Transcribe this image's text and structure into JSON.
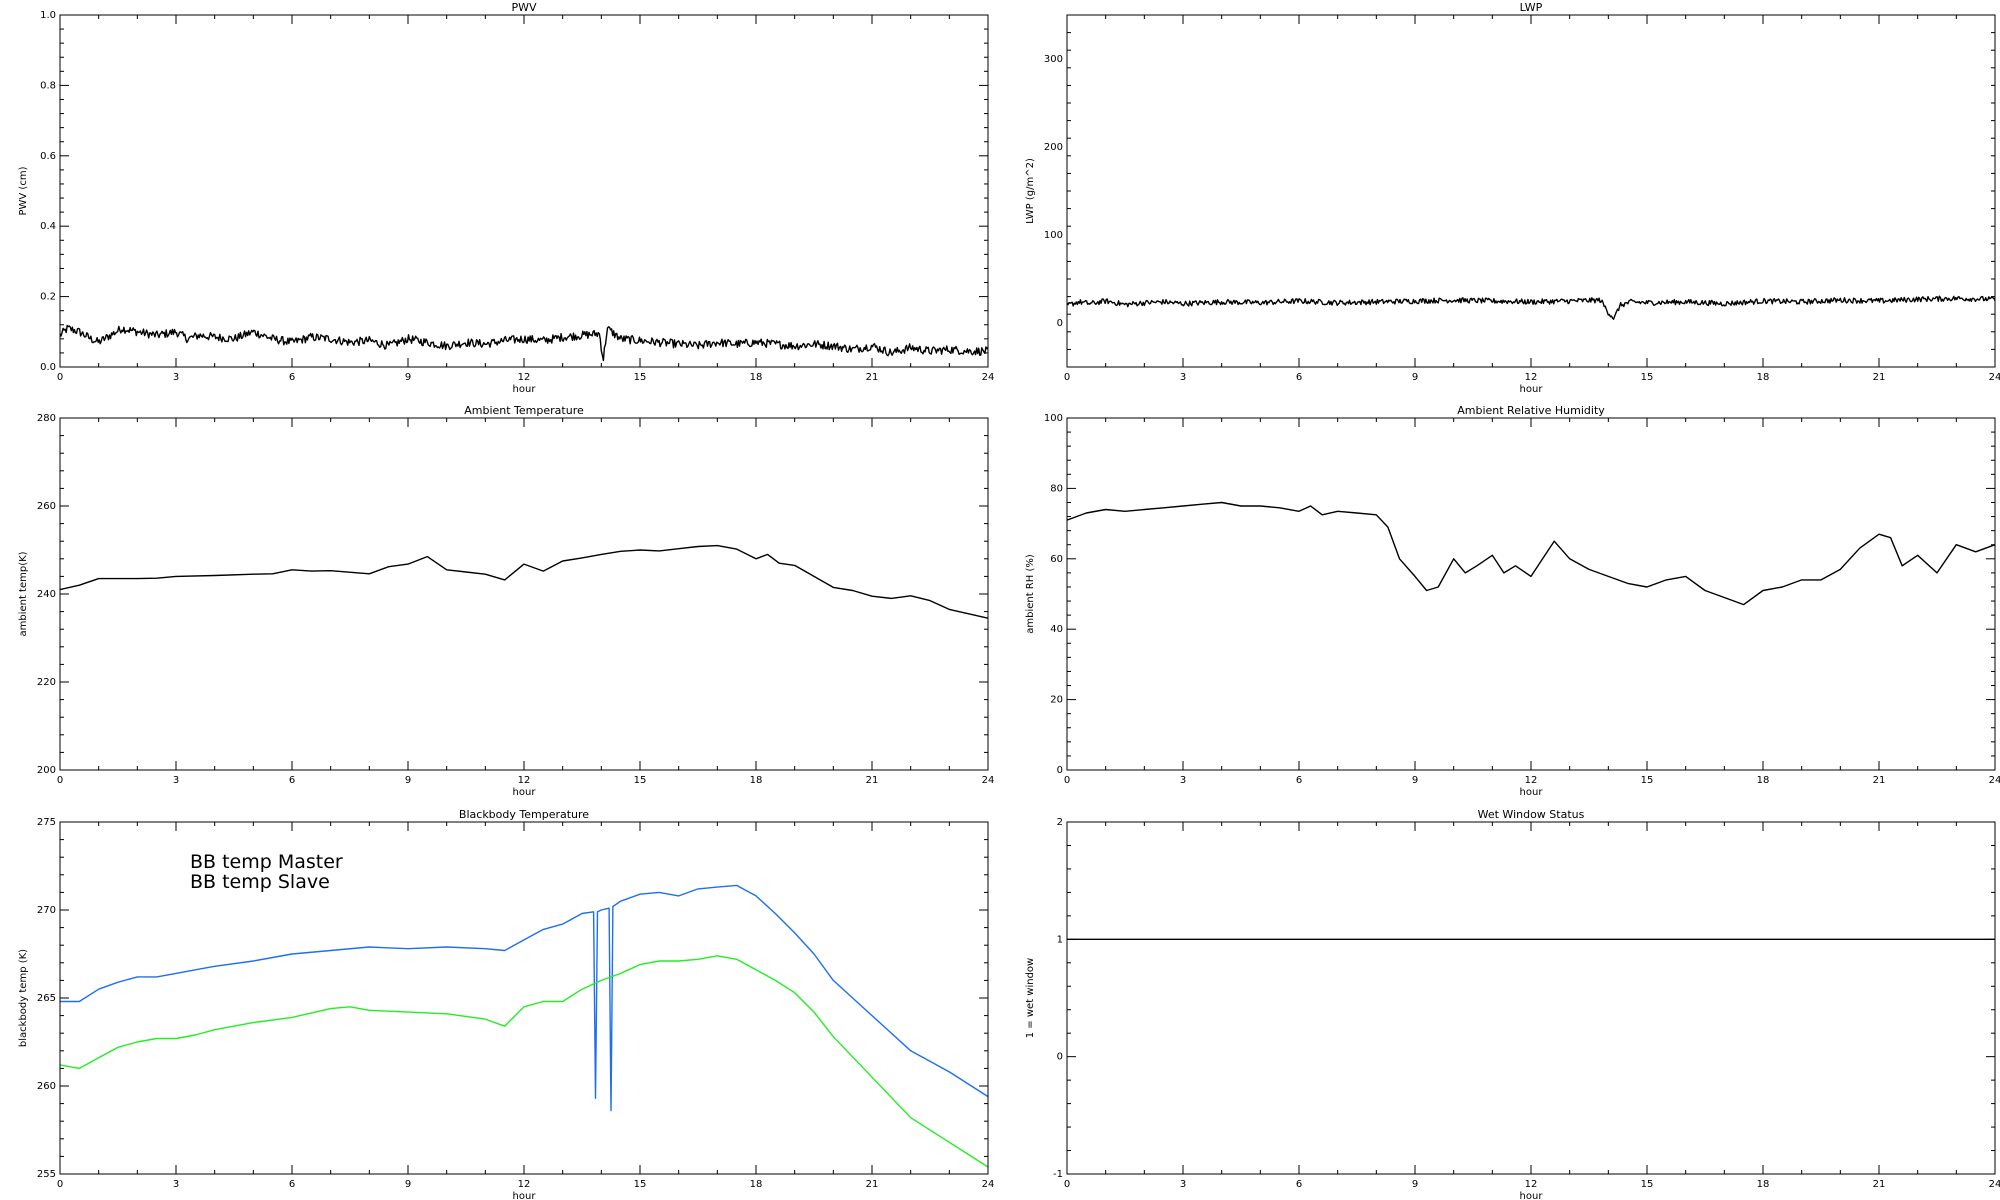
{
  "colors": {
    "axis": "#000000",
    "line_black": "#000000",
    "master": "#1e6ff0",
    "slave": "#22ee22"
  },
  "chart_data": [
    {
      "type": "line",
      "title": "PWV",
      "xlabel": "hour",
      "ylabel": "PWV (cm)",
      "xlim": [
        0,
        24
      ],
      "ylim": [
        0,
        1.0
      ],
      "xticks": [
        0,
        3,
        6,
        9,
        12,
        15,
        18,
        21,
        24
      ],
      "yticks": [
        0.0,
        0.2,
        0.4,
        0.6,
        0.8,
        1.0
      ],
      "ytick_labels": [
        "0.0",
        "0.2",
        "0.4",
        "0.6",
        "0.8",
        "1.0"
      ],
      "grid": false,
      "noisy": true,
      "noise_amplitude": 0.012,
      "series": [
        {
          "color": "#000000",
          "x": [
            0,
            0.2,
            0.5,
            0.8,
            1.0,
            1.3,
            1.6,
            2.0,
            2.5,
            3.0,
            3.3,
            3.6,
            4.0,
            4.5,
            5.0,
            5.5,
            6.0,
            6.5,
            7.0,
            7.5,
            8.0,
            8.5,
            9.0,
            9.5,
            10.0,
            10.5,
            11.0,
            11.5,
            12.0,
            12.5,
            13.0,
            13.5,
            13.95,
            14.05,
            14.15,
            14.5,
            15.0,
            15.5,
            16.0,
            16.5,
            17.0,
            17.5,
            18.0,
            18.5,
            19.0,
            19.5,
            20.0,
            20.5,
            21.0,
            21.5,
            22.0,
            22.5,
            23.0,
            23.5,
            24.0
          ],
          "y": [
            0.09,
            0.11,
            0.1,
            0.08,
            0.07,
            0.09,
            0.11,
            0.1,
            0.09,
            0.1,
            0.08,
            0.09,
            0.085,
            0.08,
            0.1,
            0.08,
            0.07,
            0.085,
            0.08,
            0.07,
            0.075,
            0.06,
            0.08,
            0.07,
            0.06,
            0.07,
            0.065,
            0.075,
            0.08,
            0.075,
            0.085,
            0.09,
            0.095,
            0.02,
            0.11,
            0.08,
            0.075,
            0.07,
            0.065,
            0.06,
            0.07,
            0.065,
            0.07,
            0.065,
            0.06,
            0.065,
            0.06,
            0.05,
            0.06,
            0.04,
            0.055,
            0.045,
            0.05,
            0.045,
            0.045
          ]
        }
      ]
    },
    {
      "type": "line",
      "title": "LWP",
      "xlabel": "hour",
      "ylabel": "LWP (g/m^2)",
      "xlim": [
        0,
        24
      ],
      "ylim": [
        -50,
        350
      ],
      "xticks": [
        0,
        3,
        6,
        9,
        12,
        15,
        18,
        21,
        24
      ],
      "yticks": [
        0,
        100,
        200,
        300
      ],
      "ytick_labels": [
        "0",
        "100",
        "200",
        "300"
      ],
      "grid": false,
      "noisy": true,
      "noise_amplitude": 3,
      "series": [
        {
          "color": "#000000",
          "x": [
            0,
            0.3,
            0.6,
            1.0,
            1.5,
            2.0,
            2.5,
            3.0,
            4.0,
            5.0,
            6.0,
            7.0,
            8.0,
            9.0,
            10.0,
            11.0,
            12.0,
            13.0,
            13.8,
            14.0,
            14.15,
            14.3,
            14.6,
            15.0,
            16.0,
            17.0,
            18.0,
            19.0,
            20.0,
            21.0,
            22.0,
            23.0,
            24.0
          ],
          "y": [
            20,
            24,
            22,
            25,
            21,
            23,
            24,
            22,
            24,
            23,
            25,
            23,
            24,
            25,
            26,
            25,
            24,
            25,
            26,
            12,
            5,
            20,
            24,
            23,
            24,
            22,
            25,
            24,
            26,
            25,
            27,
            28,
            27
          ]
        }
      ]
    },
    {
      "type": "line",
      "title": "Ambient Temperature",
      "xlabel": "hour",
      "ylabel": "ambient temp(K)",
      "xlim": [
        0,
        24
      ],
      "ylim": [
        200,
        280
      ],
      "xticks": [
        0,
        3,
        6,
        9,
        12,
        15,
        18,
        21,
        24
      ],
      "yticks": [
        200,
        220,
        240,
        260,
        280
      ],
      "ytick_labels": [
        "200",
        "220",
        "240",
        "260",
        "280"
      ],
      "grid": false,
      "noisy": false,
      "series": [
        {
          "color": "#000000",
          "x": [
            0,
            0.5,
            1.0,
            1.5,
            2.0,
            2.5,
            3.0,
            4.0,
            5.0,
            5.5,
            6.0,
            6.5,
            7.0,
            8.0,
            8.5,
            9.0,
            9.5,
            10.0,
            10.5,
            11.0,
            11.5,
            12.0,
            12.5,
            13.0,
            13.5,
            14.0,
            14.5,
            15.0,
            15.5,
            16.0,
            16.5,
            17.0,
            17.5,
            18.0,
            18.3,
            18.6,
            19.0,
            19.5,
            20.0,
            20.5,
            21.0,
            21.5,
            22.0,
            22.5,
            23.0,
            23.5,
            24.0
          ],
          "y": [
            241,
            242,
            243.5,
            243.5,
            243.5,
            243.6,
            244,
            244.2,
            244.5,
            244.6,
            245.5,
            245.2,
            245.3,
            244.6,
            246.2,
            246.8,
            248.5,
            245.5,
            245,
            244.5,
            243.2,
            246.8,
            245.2,
            247.5,
            248.2,
            249,
            249.7,
            250,
            249.8,
            250.3,
            250.8,
            251,
            250.2,
            248,
            249,
            247,
            246.5,
            244,
            241.5,
            240.8,
            239.5,
            239,
            239.6,
            238.5,
            236.5,
            235.5,
            234.5
          ]
        }
      ]
    },
    {
      "type": "line",
      "title": "Ambient Relative Humidity",
      "xlabel": "hour",
      "ylabel": "ambient RH (%)",
      "xlim": [
        0,
        24
      ],
      "ylim": [
        0,
        100
      ],
      "xticks": [
        0,
        3,
        6,
        9,
        12,
        15,
        18,
        21,
        24
      ],
      "yticks": [
        0,
        20,
        40,
        60,
        80,
        100
      ],
      "ytick_labels": [
        "0",
        "20",
        "40",
        "60",
        "80",
        "100"
      ],
      "grid": false,
      "noisy": false,
      "series": [
        {
          "color": "#000000",
          "x": [
            0,
            0.5,
            1.0,
            1.5,
            2.0,
            2.5,
            3.0,
            3.5,
            4.0,
            4.5,
            5.0,
            5.5,
            6.0,
            6.3,
            6.6,
            7.0,
            7.5,
            8.0,
            8.3,
            8.6,
            9.0,
            9.3,
            9.6,
            10.0,
            10.3,
            10.6,
            11.0,
            11.3,
            11.6,
            12.0,
            12.3,
            12.6,
            13.0,
            13.5,
            14.0,
            14.5,
            15.0,
            15.5,
            16.0,
            16.5,
            17.0,
            17.5,
            18.0,
            18.5,
            19.0,
            19.5,
            20.0,
            20.5,
            21.0,
            21.3,
            21.6,
            22.0,
            22.5,
            23.0,
            23.5,
            24.0
          ],
          "y": [
            71,
            73,
            74,
            73.5,
            74,
            74.5,
            75,
            75.5,
            76,
            75,
            75,
            74.5,
            73.5,
            75,
            72.5,
            73.5,
            73,
            72.5,
            69,
            60,
            55,
            51,
            52,
            60,
            56,
            58,
            61,
            56,
            58,
            55,
            60,
            65,
            60,
            57,
            55,
            53,
            52,
            54,
            55,
            51,
            49,
            47,
            51,
            52,
            54,
            54,
            57,
            63,
            67,
            66,
            58,
            61,
            56,
            64,
            62,
            64
          ]
        }
      ]
    },
    {
      "type": "line",
      "title": "Blackbody Temperature",
      "xlabel": "hour",
      "ylabel": "blackbody temp (K)",
      "xlim": [
        0,
        24
      ],
      "ylim": [
        255,
        275
      ],
      "xticks": [
        0,
        3,
        6,
        9,
        12,
        15,
        18,
        21,
        24
      ],
      "yticks": [
        255,
        260,
        265,
        270,
        275
      ],
      "ytick_labels": [
        "255",
        "260",
        "265",
        "270",
        "275"
      ],
      "grid": false,
      "noisy": false,
      "legend_placement": "top-left",
      "legend": [
        "BB temp Master",
        "BB temp Slave"
      ],
      "series": [
        {
          "name": "BB temp Master",
          "color": "#1e6ff0",
          "x": [
            0,
            0.5,
            1.0,
            1.5,
            2.0,
            2.5,
            3.0,
            3.5,
            4.0,
            5.0,
            6.0,
            7.0,
            8.0,
            9.0,
            10.0,
            11.0,
            11.5,
            12.0,
            12.5,
            13.0,
            13.5,
            13.8,
            13.85,
            13.9,
            14.0,
            14.2,
            14.25,
            14.3,
            14.5,
            15.0,
            15.5,
            16.0,
            16.5,
            17.0,
            17.5,
            18.0,
            18.5,
            19.0,
            19.5,
            20.0,
            21.0,
            22.0,
            23.0,
            24.0
          ],
          "y": [
            264.8,
            264.8,
            265.5,
            265.9,
            266.2,
            266.2,
            266.4,
            266.6,
            266.8,
            267.1,
            267.5,
            267.7,
            267.9,
            267.8,
            267.9,
            267.8,
            267.7,
            268.3,
            268.9,
            269.2,
            269.8,
            269.9,
            259.3,
            269.9,
            270.0,
            270.1,
            258.6,
            270.2,
            270.5,
            270.9,
            271.0,
            270.8,
            271.2,
            271.3,
            271.4,
            270.8,
            269.8,
            268.7,
            267.5,
            266.0,
            264.0,
            262.0,
            260.8,
            259.4
          ]
        },
        {
          "name": "BB temp Slave",
          "color": "#22ee22",
          "x": [
            0,
            0.5,
            1.0,
            1.5,
            2.0,
            2.5,
            3.0,
            3.5,
            4.0,
            5.0,
            6.0,
            7.0,
            7.5,
            8.0,
            9.0,
            10.0,
            11.0,
            11.5,
            12.0,
            12.5,
            13.0,
            13.5,
            14.0,
            14.5,
            15.0,
            15.5,
            16.0,
            16.5,
            17.0,
            17.5,
            18.0,
            18.5,
            19.0,
            19.5,
            20.0,
            21.0,
            22.0,
            23.0,
            24.0
          ],
          "y": [
            261.2,
            261.0,
            261.6,
            262.2,
            262.5,
            262.7,
            262.7,
            262.9,
            263.2,
            263.6,
            263.9,
            264.4,
            264.5,
            264.3,
            264.2,
            264.1,
            263.8,
            263.4,
            264.5,
            264.8,
            264.8,
            265.5,
            266.0,
            266.4,
            266.9,
            267.1,
            267.1,
            267.2,
            267.4,
            267.2,
            266.6,
            266.0,
            265.3,
            264.2,
            262.8,
            260.5,
            258.2,
            256.8,
            255.4
          ]
        }
      ]
    },
    {
      "type": "line",
      "title": "Wet Window Status",
      "xlabel": "hour",
      "ylabel": "1 = wet window",
      "xlim": [
        0,
        24
      ],
      "ylim": [
        -1,
        2
      ],
      "xticks": [
        0,
        3,
        6,
        9,
        12,
        15,
        18,
        21,
        24
      ],
      "yticks": [
        -1,
        0,
        1,
        2
      ],
      "ytick_labels": [
        "-1",
        "0",
        "1",
        "2"
      ],
      "grid": false,
      "noisy": false,
      "series": [
        {
          "color": "#000000",
          "x": [
            0,
            24
          ],
          "y": [
            1,
            1
          ]
        }
      ]
    }
  ]
}
